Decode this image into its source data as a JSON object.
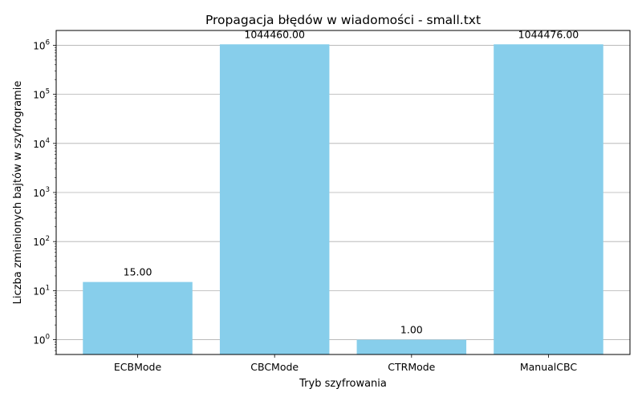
{
  "chart_data": {
    "type": "bar",
    "title": "Propagacja błędów w wiadomości - small.txt",
    "xlabel": "Tryb szyfrowania",
    "ylabel": "Liczba zmienionych bajtów w szyfrogramie",
    "y_scale": "log",
    "ylim": [
      0.5,
      2000000
    ],
    "grid": "y",
    "categories": [
      "ECBMode",
      "CBCMode",
      "CTRMode",
      "ManualCBC"
    ],
    "values": [
      15,
      1044460,
      1,
      1044476
    ],
    "data_labels": [
      "15.00",
      "1044460.00",
      "1.00",
      "1044476.00"
    ],
    "y_ticks": [
      {
        "value": 1,
        "base": "10",
        "exp": "0"
      },
      {
        "value": 10,
        "base": "10",
        "exp": "1"
      },
      {
        "value": 100,
        "base": "10",
        "exp": "2"
      },
      {
        "value": 1000,
        "base": "10",
        "exp": "3"
      },
      {
        "value": 10000,
        "base": "10",
        "exp": "4"
      },
      {
        "value": 100000,
        "base": "10",
        "exp": "5"
      },
      {
        "value": 1000000,
        "base": "10",
        "exp": "6"
      }
    ],
    "bar_color": "#87ceeb",
    "grid_color": "#b0b0b0"
  }
}
